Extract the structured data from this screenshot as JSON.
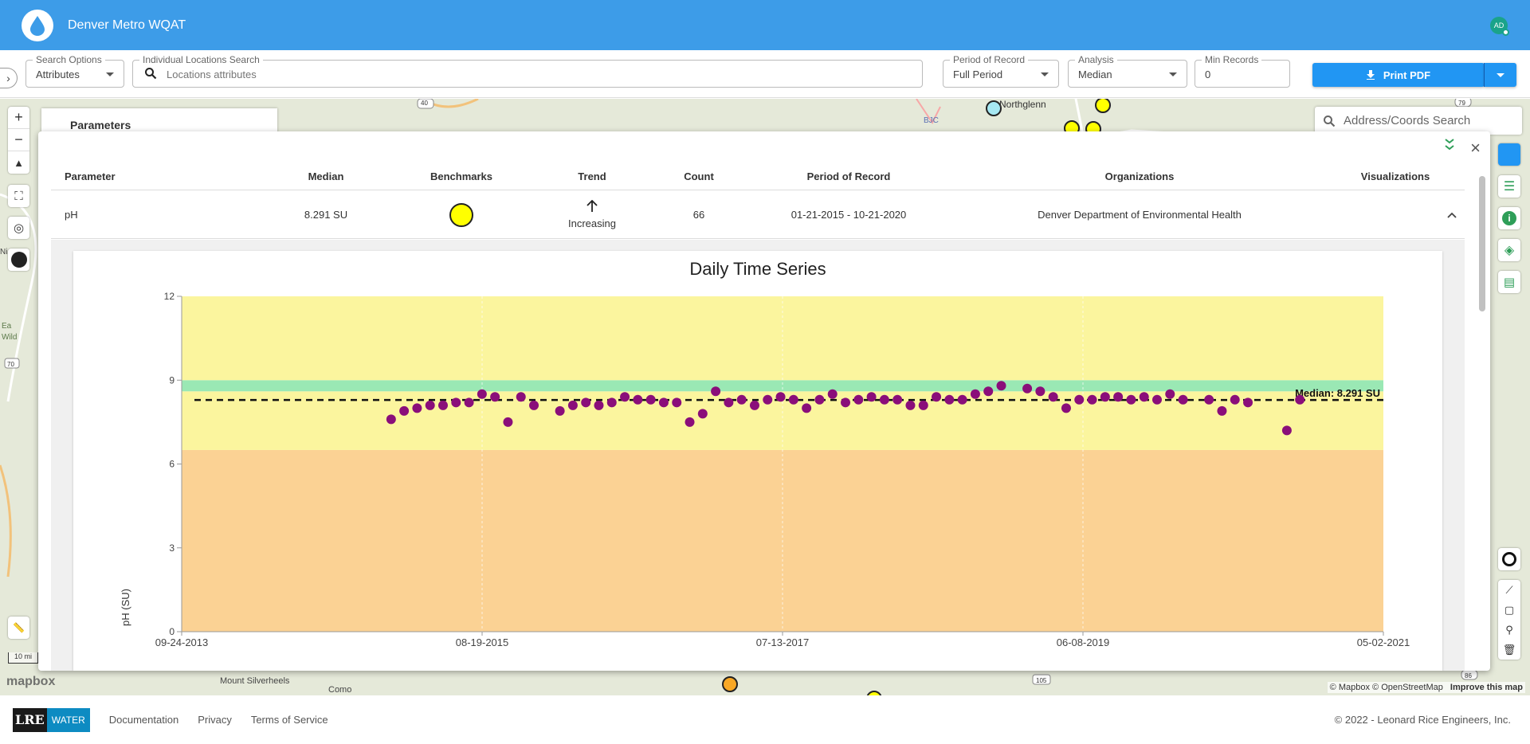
{
  "app": {
    "title": "Denver Metro WQAT",
    "avatar_initials": "AD"
  },
  "toolbar": {
    "search_options": {
      "label": "Search Options",
      "value": "Attributes"
    },
    "locations_search": {
      "label": "Individual Locations Search",
      "placeholder": "Locations attributes"
    },
    "period_of_record": {
      "label": "Period of Record",
      "value": "Full Period"
    },
    "analysis": {
      "label": "Analysis",
      "value": "Median"
    },
    "min_records": {
      "label": "Min Records",
      "value": "0"
    },
    "print_label": "Print PDF"
  },
  "map": {
    "address_search_placeholder": "Address/Coords Search",
    "parameters_card": "Parameters",
    "scale_value": "10 mi",
    "attribution": [
      "© Mapbox",
      "© OpenStreetMap"
    ],
    "improve": "Improve this map",
    "mapbox_logo": "mapbox",
    "place_labels": [
      "Northglenn",
      "BJC",
      "Mount Silverheels",
      "Como",
      "Ea",
      "Wild",
      "Ni"
    ],
    "highway_labels": [
      "40",
      "70",
      "105",
      "86",
      "79"
    ]
  },
  "table": {
    "headers": [
      "Parameter",
      "Median",
      "Benchmarks",
      "Trend",
      "Count",
      "Period of Record",
      "Organizations",
      "Visualizations"
    ],
    "row": {
      "parameter": "pH",
      "median": "8.291 SU",
      "benchmark_color": "#ffff00",
      "trend": "Increasing",
      "count": "66",
      "period": "01-21-2015 - 10-21-2020",
      "organization": "Denver Department of Environmental Health"
    }
  },
  "chart_data": {
    "type": "scatter",
    "title": "Daily Time Series",
    "ylabel": "pH (SU)",
    "ylim": [
      0,
      12
    ],
    "yticks": [
      0,
      3,
      6,
      9,
      12
    ],
    "xlim": [
      "2013-09-24",
      "2021-05-02"
    ],
    "xtick_labels": [
      "09-24-2013",
      "08-19-2015",
      "07-13-2017",
      "06-08-2019",
      "05-02-2021"
    ],
    "median_line": {
      "value": 8.291,
      "label": "Median: 8.291 SU"
    },
    "bands": [
      {
        "from": 0,
        "to": 6.5,
        "color": "#fbd294"
      },
      {
        "from": 6.5,
        "to": 8.6,
        "color": "#fbf59e"
      },
      {
        "from": 8.6,
        "to": 9.0,
        "color": "#9ae8b4"
      },
      {
        "from": 9.0,
        "to": 12,
        "color": "#fbf59e"
      }
    ],
    "marker_color": "#8a0e7a",
    "points": [
      [
        "2015-01-21",
        7.6
      ],
      [
        "2015-02-20",
        7.9
      ],
      [
        "2015-03-22",
        8.0
      ],
      [
        "2015-04-21",
        8.1
      ],
      [
        "2015-05-21",
        8.1
      ],
      [
        "2015-06-20",
        8.2
      ],
      [
        "2015-07-20",
        8.2
      ],
      [
        "2015-08-19",
        8.5
      ],
      [
        "2015-09-18",
        8.4
      ],
      [
        "2015-10-18",
        7.5
      ],
      [
        "2015-11-17",
        8.4
      ],
      [
        "2015-12-17",
        8.1
      ],
      [
        "2016-02-15",
        7.9
      ],
      [
        "2016-03-16",
        8.1
      ],
      [
        "2016-04-15",
        8.2
      ],
      [
        "2016-05-15",
        8.1
      ],
      [
        "2016-06-14",
        8.2
      ],
      [
        "2016-07-14",
        8.4
      ],
      [
        "2016-08-13",
        8.3
      ],
      [
        "2016-09-12",
        8.3
      ],
      [
        "2016-10-12",
        8.2
      ],
      [
        "2016-11-11",
        8.2
      ],
      [
        "2016-12-11",
        7.5
      ],
      [
        "2017-01-10",
        7.8
      ],
      [
        "2017-02-09",
        8.6
      ],
      [
        "2017-03-11",
        8.2
      ],
      [
        "2017-04-10",
        8.3
      ],
      [
        "2017-05-10",
        8.1
      ],
      [
        "2017-06-09",
        8.3
      ],
      [
        "2017-07-09",
        8.4
      ],
      [
        "2017-08-08",
        8.3
      ],
      [
        "2017-09-07",
        8.0
      ],
      [
        "2017-10-07",
        8.3
      ],
      [
        "2017-11-06",
        8.5
      ],
      [
        "2017-12-06",
        8.2
      ],
      [
        "2018-01-05",
        8.3
      ],
      [
        "2018-02-04",
        8.4
      ],
      [
        "2018-03-06",
        8.3
      ],
      [
        "2018-04-05",
        8.3
      ],
      [
        "2018-05-05",
        8.1
      ],
      [
        "2018-06-04",
        8.1
      ],
      [
        "2018-07-04",
        8.4
      ],
      [
        "2018-08-03",
        8.3
      ],
      [
        "2018-09-02",
        8.3
      ],
      [
        "2018-10-02",
        8.5
      ],
      [
        "2018-11-01",
        8.6
      ],
      [
        "2018-12-01",
        8.8
      ],
      [
        "2019-01-30",
        8.7
      ],
      [
        "2019-03-01",
        8.6
      ],
      [
        "2019-03-31",
        8.4
      ],
      [
        "2019-04-30",
        8.0
      ],
      [
        "2019-05-30",
        8.3
      ],
      [
        "2019-06-29",
        8.3
      ],
      [
        "2019-07-29",
        8.4
      ],
      [
        "2019-08-28",
        8.4
      ],
      [
        "2019-09-27",
        8.3
      ],
      [
        "2019-10-27",
        8.4
      ],
      [
        "2019-11-26",
        8.3
      ],
      [
        "2019-12-26",
        8.5
      ],
      [
        "2020-01-25",
        8.3
      ],
      [
        "2020-03-25",
        8.3
      ],
      [
        "2020-04-24",
        7.9
      ],
      [
        "2020-05-24",
        8.3
      ],
      [
        "2020-06-23",
        8.2
      ],
      [
        "2020-09-21",
        7.2
      ],
      [
        "2020-10-21",
        8.3
      ]
    ]
  },
  "footer": {
    "logo_lre": "LRE",
    "logo_water": "WATER",
    "links": [
      "Documentation",
      "Privacy",
      "Terms of Service"
    ],
    "copyright": "© 2022 - Leonard Rice Engineers, Inc."
  }
}
